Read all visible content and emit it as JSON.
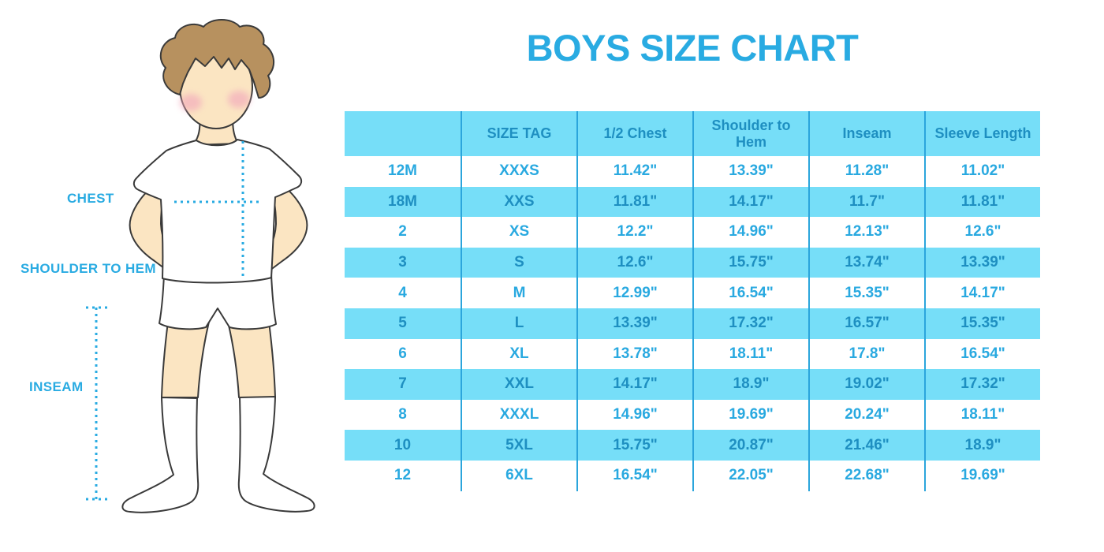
{
  "title": "BOYS SIZE CHART",
  "figure": {
    "labels": {
      "chest": "CHEST",
      "shoulder_to_hem": "SHOULDER TO HEM",
      "inseam": "INSEAM"
    }
  },
  "chart_data": {
    "type": "table",
    "title": "BOYS SIZE CHART",
    "columns": [
      "",
      "SIZE TAG",
      "1/2 Chest",
      "Shoulder to Hem",
      "Inseam",
      "Sleeve Length"
    ],
    "rows": [
      [
        "12M",
        "XXXS",
        "11.42\"",
        "13.39\"",
        "11.28\"",
        "11.02\""
      ],
      [
        "18M",
        "XXS",
        "11.81\"",
        "14.17\"",
        "11.7\"",
        "11.81\""
      ],
      [
        "2",
        "XS",
        "12.2\"",
        "14.96\"",
        "12.13\"",
        "12.6\""
      ],
      [
        "3",
        "S",
        "12.6\"",
        "15.75\"",
        "13.74\"",
        "13.39\""
      ],
      [
        "4",
        "M",
        "12.99\"",
        "16.54\"",
        "15.35\"",
        "14.17\""
      ],
      [
        "5",
        "L",
        "13.39\"",
        "17.32\"",
        "16.57\"",
        "15.35\""
      ],
      [
        "6",
        "XL",
        "13.78\"",
        "18.11\"",
        "17.8\"",
        "16.54\""
      ],
      [
        "7",
        "XXL",
        "14.17\"",
        "18.9\"",
        "19.02\"",
        "17.32\""
      ],
      [
        "8",
        "XXXL",
        "14.96\"",
        "19.69\"",
        "20.24\"",
        "18.11\""
      ],
      [
        "10",
        "5XL",
        "15.75\"",
        "20.87\"",
        "21.46\"",
        "18.9\""
      ],
      [
        "12",
        "6XL",
        "16.54\"",
        "22.05\"",
        "22.68\"",
        "19.69\""
      ]
    ],
    "units": "inches",
    "row_banding": "alternating white / cyan, header cyan",
    "grid": "vertical column separators only",
    "legend_position": "none"
  },
  "colors": {
    "accent_blue": "#29ABE2",
    "band_cyan": "#76DEF8",
    "header_text_blue": "#1E8FC1",
    "column_line_blue": "#2BA5DC",
    "skin": "#FBE5C2",
    "hair_brown": "#B7915F",
    "cheek_pink": "#F2A9BC"
  }
}
